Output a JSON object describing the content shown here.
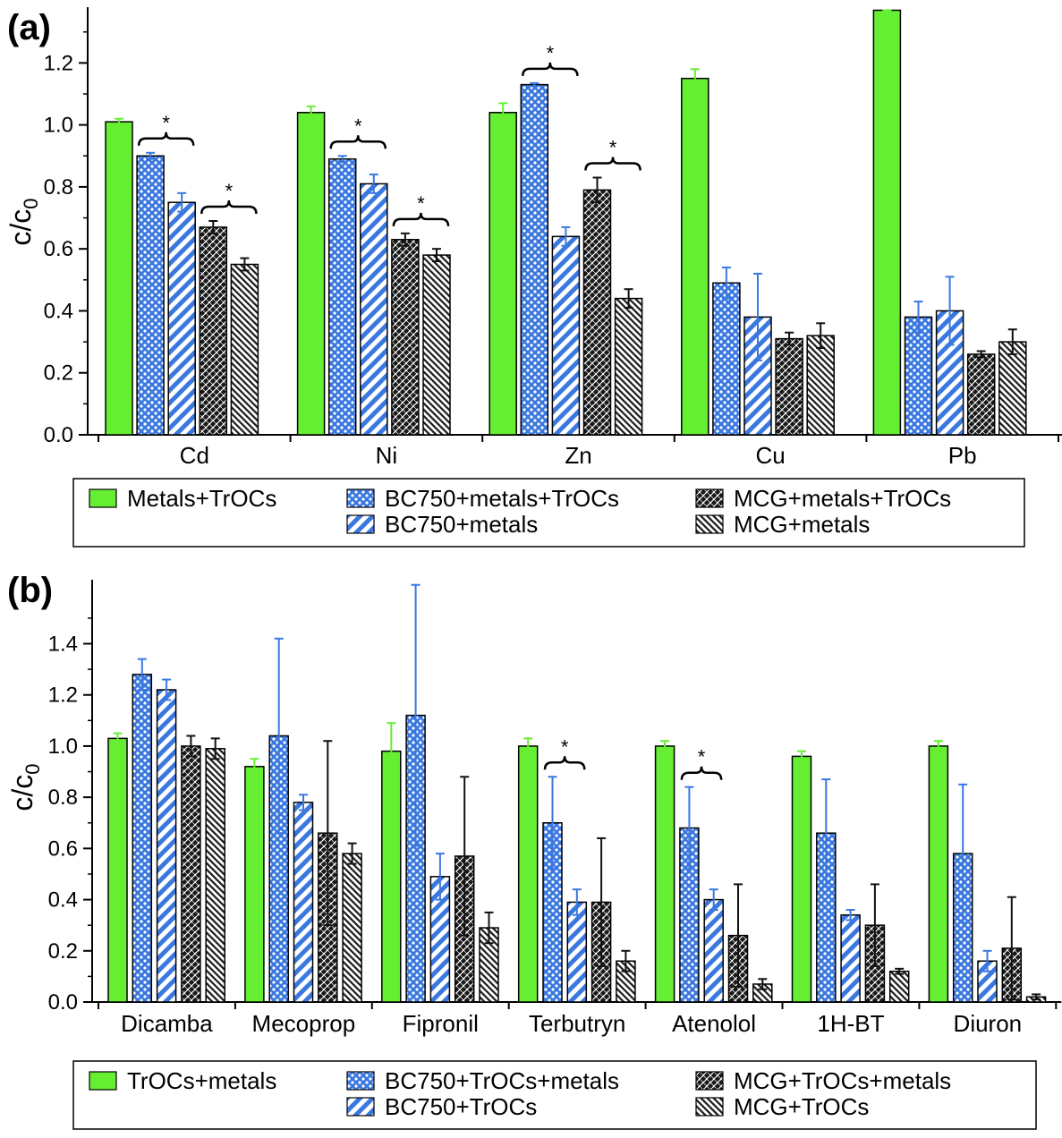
{
  "chart_data": [
    {
      "panel_label": "(a)",
      "type": "bar",
      "ylabel": "c/c",
      "ylabel_sub": "0",
      "ylim": [
        0,
        1.38
      ],
      "yticks": [
        "0.0",
        "0.2",
        "0.4",
        "0.6",
        "0.8",
        "1.0",
        "1.2"
      ],
      "categories": [
        "Cd",
        "Ni",
        "Zn",
        "Cu",
        "Pb"
      ],
      "series": [
        {
          "name": "Metals+TrOCs",
          "values": [
            1.01,
            1.04,
            1.04,
            1.15,
            1.37
          ],
          "errors": [
            0.01,
            0.02,
            0.03,
            0.03,
            0.0
          ]
        },
        {
          "name": "BC750+metals+TrOCs",
          "values": [
            0.9,
            0.89,
            1.13,
            0.49,
            0.38
          ],
          "errors": [
            0.01,
            0.01,
            0.005,
            0.05,
            0.05
          ]
        },
        {
          "name": "BC750+metals",
          "values": [
            0.75,
            0.81,
            0.64,
            0.38,
            0.4
          ],
          "errors": [
            0.03,
            0.03,
            0.03,
            0.14,
            0.11
          ]
        },
        {
          "name": "MCG+metals+TrOCs",
          "values": [
            0.67,
            0.63,
            0.79,
            0.31,
            0.26
          ],
          "errors": [
            0.02,
            0.02,
            0.04,
            0.02,
            0.01
          ]
        },
        {
          "name": "MCG+metals",
          "values": [
            0.55,
            0.58,
            0.44,
            0.32,
            0.3
          ],
          "errors": [
            0.02,
            0.02,
            0.03,
            0.04,
            0.04
          ]
        }
      ],
      "significance": [
        {
          "category": "Cd",
          "from": "BC750+metals+TrOCs",
          "to": "BC750+metals",
          "label": "*"
        },
        {
          "category": "Cd",
          "from": "MCG+metals+TrOCs",
          "to": "MCG+metals",
          "label": "*"
        },
        {
          "category": "Ni",
          "from": "BC750+metals+TrOCs",
          "to": "BC750+metals",
          "label": "*"
        },
        {
          "category": "Ni",
          "from": "MCG+metals+TrOCs",
          "to": "MCG+metals",
          "label": "*"
        },
        {
          "category": "Zn",
          "from": "BC750+metals+TrOCs",
          "to": "BC750+metals",
          "label": "*"
        },
        {
          "category": "Zn",
          "from": "MCG+metals+TrOCs",
          "to": "MCG+metals",
          "label": "*"
        }
      ]
    },
    {
      "panel_label": "(b)",
      "type": "bar",
      "ylabel": "c/c",
      "ylabel_sub": "0",
      "ylim": [
        0,
        1.65
      ],
      "yticks": [
        "0.0",
        "0.2",
        "0.4",
        "0.6",
        "0.8",
        "1.0",
        "1.2",
        "1.4"
      ],
      "categories": [
        "Dicamba",
        "Mecoprop",
        "Fipronil",
        "Terbutryn",
        "Atenolol",
        "1H-BT",
        "Diuron"
      ],
      "series": [
        {
          "name": "TrOCs+metals",
          "values": [
            1.03,
            0.92,
            0.98,
            1.0,
            1.0,
            0.96,
            1.0
          ],
          "errors": [
            0.02,
            0.03,
            0.11,
            0.03,
            0.02,
            0.02,
            0.02
          ]
        },
        {
          "name": "BC750+TrOCs+metals",
          "values": [
            1.28,
            1.04,
            1.12,
            0.7,
            0.68,
            0.66,
            0.58
          ],
          "errors": [
            0.06,
            0.38,
            0.51,
            0.18,
            0.16,
            0.21,
            0.27
          ]
        },
        {
          "name": "BC750+TrOCs",
          "values": [
            1.22,
            0.78,
            0.49,
            0.39,
            0.4,
            0.34,
            0.16
          ],
          "errors": [
            0.04,
            0.03,
            0.09,
            0.05,
            0.04,
            0.02,
            0.04
          ]
        },
        {
          "name": "MCG+TrOCs+metals",
          "values": [
            1.0,
            0.66,
            0.57,
            0.39,
            0.26,
            0.3,
            0.21
          ],
          "errors": [
            0.04,
            0.36,
            0.31,
            0.25,
            0.2,
            0.16,
            0.2
          ]
        },
        {
          "name": "MCG+TrOCs",
          "values": [
            0.99,
            0.58,
            0.29,
            0.16,
            0.07,
            0.12,
            0.02
          ],
          "errors": [
            0.04,
            0.04,
            0.06,
            0.04,
            0.02,
            0.01,
            0.01
          ]
        }
      ],
      "significance": [
        {
          "category": "Terbutryn",
          "from": "BC750+TrOCs+metals",
          "to": "BC750+TrOCs",
          "label": "*"
        },
        {
          "category": "Atenolol",
          "from": "BC750+TrOCs+metals",
          "to": "BC750+TrOCs",
          "label": "*"
        }
      ]
    }
  ],
  "colors": {
    "green": "#66ee33",
    "blue": "#3a78e0",
    "black": "#1a1a1a",
    "error_green": "#66ee33",
    "error_blue": "#3a78e0",
    "error_black": "#111111"
  }
}
